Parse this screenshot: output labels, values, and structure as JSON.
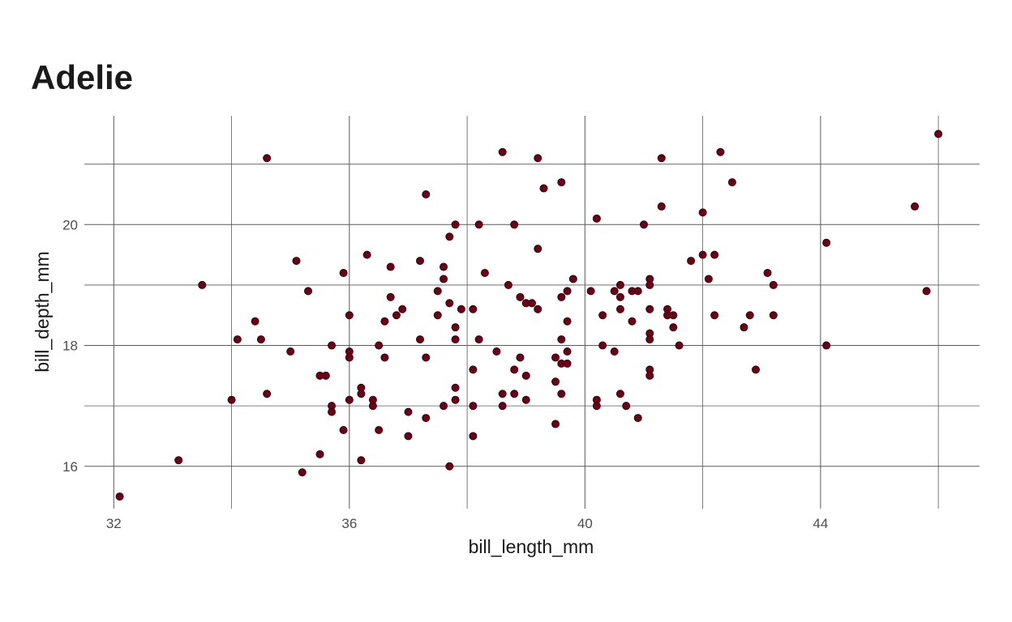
{
  "chart_data": {
    "type": "scatter",
    "title": "Adelie",
    "xlabel": "bill_length_mm",
    "ylabel": "bill_depth_mm",
    "xlim": [
      31.5,
      46.7
    ],
    "ylim": [
      15.3,
      21.8
    ],
    "x_ticks": [
      32,
      36,
      40,
      44
    ],
    "y_ticks": [
      16,
      18,
      20
    ],
    "x_minor_ticks": [
      34,
      38,
      42,
      46
    ],
    "y_minor_ticks": [
      17,
      19,
      21
    ],
    "grid": true,
    "point_color": "#6b0019",
    "point_stroke": "#3a000c",
    "points": [
      [
        32.1,
        15.5
      ],
      [
        33.1,
        16.1
      ],
      [
        33.5,
        19.0
      ],
      [
        34.0,
        17.1
      ],
      [
        34.1,
        18.1
      ],
      [
        34.4,
        18.4
      ],
      [
        34.5,
        18.1
      ],
      [
        34.6,
        21.1
      ],
      [
        34.6,
        17.2
      ],
      [
        35.0,
        17.9
      ],
      [
        35.1,
        19.4
      ],
      [
        35.2,
        15.9
      ],
      [
        35.3,
        18.9
      ],
      [
        35.5,
        17.5
      ],
      [
        35.5,
        16.2
      ],
      [
        35.6,
        17.5
      ],
      [
        35.7,
        18.0
      ],
      [
        35.7,
        17.0
      ],
      [
        35.7,
        16.9
      ],
      [
        35.9,
        19.2
      ],
      [
        35.9,
        16.6
      ],
      [
        36.0,
        18.5
      ],
      [
        36.0,
        17.9
      ],
      [
        36.0,
        17.8
      ],
      [
        36.0,
        17.1
      ],
      [
        36.2,
        17.3
      ],
      [
        36.2,
        17.2
      ],
      [
        36.2,
        16.1
      ],
      [
        36.3,
        19.5
      ],
      [
        36.4,
        17.1
      ],
      [
        36.4,
        17.0
      ],
      [
        36.5,
        18.0
      ],
      [
        36.5,
        16.6
      ],
      [
        36.6,
        18.4
      ],
      [
        36.6,
        17.8
      ],
      [
        36.7,
        19.3
      ],
      [
        36.7,
        18.8
      ],
      [
        36.8,
        18.5
      ],
      [
        36.9,
        18.6
      ],
      [
        37.0,
        16.9
      ],
      [
        37.0,
        16.5
      ],
      [
        37.2,
        19.4
      ],
      [
        37.2,
        18.1
      ],
      [
        37.3,
        20.5
      ],
      [
        37.3,
        17.8
      ],
      [
        37.3,
        16.8
      ],
      [
        37.5,
        18.9
      ],
      [
        37.5,
        18.5
      ],
      [
        37.6,
        19.3
      ],
      [
        37.6,
        19.1
      ],
      [
        37.6,
        17.0
      ],
      [
        37.7,
        19.8
      ],
      [
        37.7,
        18.7
      ],
      [
        37.7,
        16.0
      ],
      [
        37.8,
        20.0
      ],
      [
        37.8,
        18.3
      ],
      [
        37.8,
        18.1
      ],
      [
        37.8,
        17.3
      ],
      [
        37.8,
        17.1
      ],
      [
        37.9,
        18.6
      ],
      [
        38.1,
        18.6
      ],
      [
        38.1,
        17.6
      ],
      [
        38.1,
        17.0
      ],
      [
        38.1,
        16.5
      ],
      [
        38.2,
        20.0
      ],
      [
        38.2,
        18.1
      ],
      [
        38.3,
        19.2
      ],
      [
        38.5,
        17.9
      ],
      [
        38.6,
        21.2
      ],
      [
        38.6,
        17.2
      ],
      [
        38.6,
        17.0
      ],
      [
        38.7,
        19.0
      ],
      [
        38.8,
        20.0
      ],
      [
        38.8,
        17.6
      ],
      [
        38.8,
        17.2
      ],
      [
        38.9,
        18.8
      ],
      [
        38.9,
        17.8
      ],
      [
        39.0,
        18.7
      ],
      [
        39.0,
        17.5
      ],
      [
        39.0,
        17.1
      ],
      [
        39.1,
        18.7
      ],
      [
        39.2,
        21.1
      ],
      [
        39.2,
        19.6
      ],
      [
        39.2,
        18.6
      ],
      [
        39.3,
        20.6
      ],
      [
        39.5,
        17.8
      ],
      [
        39.5,
        17.4
      ],
      [
        39.5,
        16.7
      ],
      [
        39.6,
        20.7
      ],
      [
        39.6,
        18.8
      ],
      [
        39.6,
        18.1
      ],
      [
        39.6,
        17.7
      ],
      [
        39.6,
        17.2
      ],
      [
        39.7,
        18.9
      ],
      [
        39.7,
        18.4
      ],
      [
        39.7,
        17.9
      ],
      [
        39.7,
        17.7
      ],
      [
        39.8,
        19.1
      ],
      [
        40.1,
        18.9
      ],
      [
        40.2,
        20.1
      ],
      [
        40.2,
        17.1
      ],
      [
        40.2,
        17.0
      ],
      [
        40.3,
        18.5
      ],
      [
        40.3,
        18.0
      ],
      [
        40.5,
        18.9
      ],
      [
        40.5,
        17.9
      ],
      [
        40.6,
        19.0
      ],
      [
        40.6,
        18.8
      ],
      [
        40.6,
        18.6
      ],
      [
        40.6,
        17.2
      ],
      [
        40.7,
        17.0
      ],
      [
        40.8,
        18.9
      ],
      [
        40.8,
        18.4
      ],
      [
        40.9,
        18.9
      ],
      [
        40.9,
        16.8
      ],
      [
        41.0,
        20.0
      ],
      [
        41.1,
        19.1
      ],
      [
        41.1,
        19.0
      ],
      [
        41.1,
        18.6
      ],
      [
        41.1,
        18.2
      ],
      [
        41.1,
        18.1
      ],
      [
        41.1,
        17.6
      ],
      [
        41.1,
        17.5
      ],
      [
        41.3,
        21.1
      ],
      [
        41.3,
        20.3
      ],
      [
        41.4,
        18.6
      ],
      [
        41.4,
        18.5
      ],
      [
        41.5,
        18.5
      ],
      [
        41.5,
        18.3
      ],
      [
        41.6,
        18.0
      ],
      [
        41.8,
        19.4
      ],
      [
        42.0,
        20.2
      ],
      [
        42.0,
        19.5
      ],
      [
        42.1,
        19.1
      ],
      [
        42.2,
        19.5
      ],
      [
        42.2,
        18.5
      ],
      [
        42.3,
        21.2
      ],
      [
        42.5,
        20.7
      ],
      [
        42.7,
        18.3
      ],
      [
        42.8,
        18.5
      ],
      [
        42.9,
        17.6
      ],
      [
        43.1,
        19.2
      ],
      [
        43.2,
        19.0
      ],
      [
        43.2,
        18.5
      ],
      [
        44.1,
        19.7
      ],
      [
        44.1,
        18.0
      ],
      [
        45.6,
        20.3
      ],
      [
        45.8,
        18.9
      ],
      [
        46.0,
        21.5
      ]
    ]
  }
}
